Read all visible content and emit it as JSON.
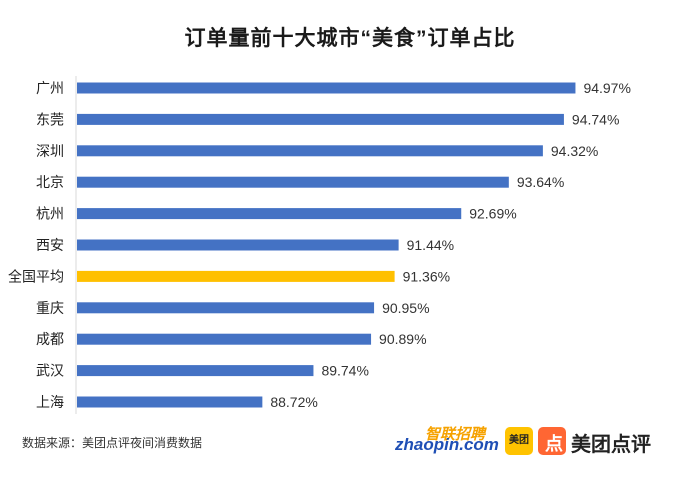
{
  "chart_data": {
    "type": "bar",
    "orientation": "horizontal",
    "title": "订单量前十大城市“美食”订单占比",
    "categories": [
      "广州",
      "东莞",
      "深圳",
      "北京",
      "杭州",
      "西安",
      "全国平均",
      "重庆",
      "成都",
      "武汉",
      "上海"
    ],
    "values": [
      94.97,
      94.74,
      94.32,
      93.64,
      92.69,
      91.44,
      91.36,
      90.95,
      90.89,
      89.74,
      88.72
    ],
    "value_labels": [
      "94.97%",
      "94.74%",
      "94.32%",
      "93.64%",
      "92.69%",
      "91.44%",
      "91.36%",
      "90.95%",
      "90.89%",
      "89.74%",
      "88.72%"
    ],
    "highlight_index": 6,
    "colors": {
      "bar": "#4472c4",
      "highlight": "#ffc000",
      "axis": "#d9d9d9"
    },
    "xlim": [
      85,
      95.5
    ],
    "grid": false,
    "legend": "none"
  },
  "footer": {
    "source": "数据来源：美团点评夜间消费数据",
    "logos": {
      "zhaopin_cn": "智联招聘",
      "zhaopin_en": "zhaopin.com",
      "meituan_small": "美团",
      "dianping_mark": "点",
      "meituan_dianping": "美团点评"
    }
  }
}
